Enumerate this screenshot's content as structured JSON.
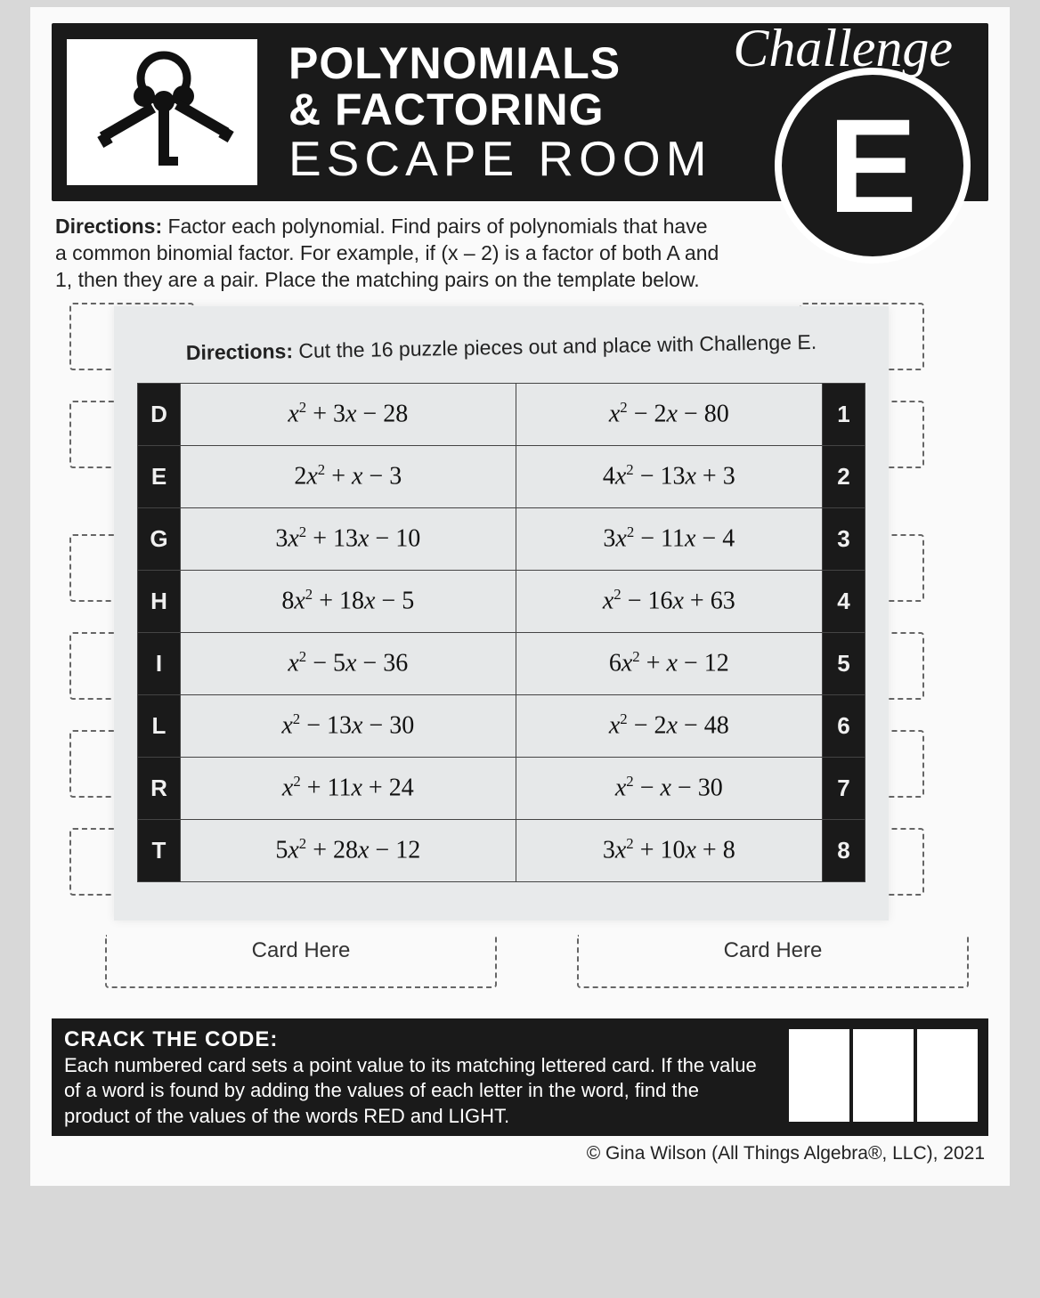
{
  "header": {
    "title_line1": "POLYNOMIALS",
    "title_line2": "& FACTORING",
    "title_line3": "ESCAPE ROOM",
    "challenge_word": "Challenge",
    "challenge_letter": "E"
  },
  "directions": {
    "label": "Directions:",
    "text": "Factor each polynomial. Find pairs of polynomials that have a common binomial factor. For example, if (x – 2) is a factor of both A and 1, then they are a pair. Place the matching pairs on the template below."
  },
  "overlay": {
    "label": "Directions:",
    "text": "Cut the 16 puzzle pieces out and place with Challenge E."
  },
  "puzzle_rows": [
    {
      "left_label": "D",
      "left_expr": "x² + 3x − 28",
      "right_expr": "x² − 2x − 80",
      "right_label": "1"
    },
    {
      "left_label": "E",
      "left_expr": "2x² + x − 3",
      "right_expr": "4x² − 13x + 3",
      "right_label": "2"
    },
    {
      "left_label": "G",
      "left_expr": "3x² + 13x − 10",
      "right_expr": "3x² − 11x − 4",
      "right_label": "3"
    },
    {
      "left_label": "H",
      "left_expr": "8x² + 18x − 5",
      "right_expr": "x² − 16x + 63",
      "right_label": "4"
    },
    {
      "left_label": "I",
      "left_expr": "x² − 5x − 36",
      "right_expr": "6x² + x − 12",
      "right_label": "5"
    },
    {
      "left_label": "L",
      "left_expr": "x² − 13x − 30",
      "right_expr": "x² − 2x − 48",
      "right_label": "6"
    },
    {
      "left_label": "R",
      "left_expr": "x² + 11x + 24",
      "right_expr": "x² − x − 30",
      "right_label": "7"
    },
    {
      "left_label": "T",
      "left_expr": "5x² + 28x − 12",
      "right_expr": "3x² + 10x + 8",
      "right_label": "8"
    }
  ],
  "card_here_label": "Card Here",
  "crack": {
    "heading": "CRACK THE CODE:",
    "body": "Each numbered card sets a point value to its matching lettered card. If the value of a word is found by adding the values of each letter in the word, find the product of the values of the words RED and LIGHT."
  },
  "copyright": "© Gina Wilson (All Things Algebra®, LLC), 2021",
  "colors": {
    "dark": "#1a1a1a",
    "page_bg": "#fafafa",
    "overlay_bg": "#e8eaeb",
    "dashed_border": "#666666"
  }
}
